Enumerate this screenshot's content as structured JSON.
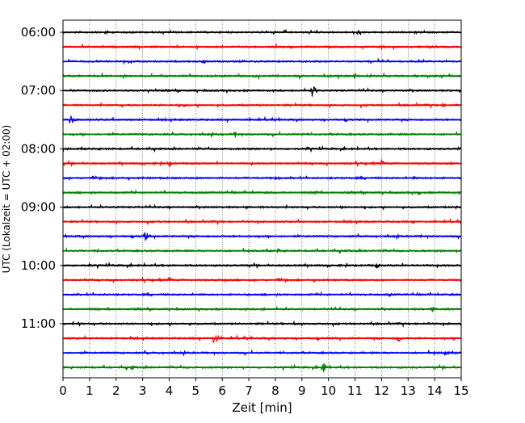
{
  "chart_data": {
    "type": "line",
    "title": "",
    "xlabel": "Zeit  [min]",
    "ylabel": "UTC (Lokalzeit = UTC + 02:00)",
    "xlim": [
      0,
      15
    ],
    "x_ticks": [
      "0",
      "1",
      "2",
      "3",
      "4",
      "5",
      "6",
      "7",
      "8",
      "9",
      "10",
      "11",
      "12",
      "13",
      "14",
      "15"
    ],
    "y_tick_labels": [
      "06:00",
      "07:00",
      "08:00",
      "09:00",
      "10:00",
      "11:00"
    ],
    "grid": "vertical dotted at each minute",
    "trace_colors": [
      "#000000",
      "#ff0000",
      "#0000ff",
      "#008000"
    ],
    "traces": [
      {
        "start": "06:00",
        "color": "#000000",
        "events": [
          {
            "x": 1.6,
            "amp": 0.35
          },
          {
            "x": 11.1,
            "amp": 0.45
          }
        ]
      },
      {
        "start": "06:15",
        "color": "#ff0000",
        "events": [
          {
            "x": 12.0,
            "amp": 0.45
          },
          {
            "x": 1.5,
            "amp": 0.25
          }
        ]
      },
      {
        "start": "06:30",
        "color": "#0000ff",
        "events": [
          {
            "x": 5.3,
            "amp": 0.5
          },
          {
            "x": 1.2,
            "amp": 0.25
          }
        ]
      },
      {
        "start": "06:45",
        "color": "#008000",
        "events": [
          {
            "x": 11.0,
            "amp": 0.4
          },
          {
            "x": 3.7,
            "amp": 0.25
          }
        ]
      },
      {
        "start": "07:00",
        "color": "#000000",
        "events": [
          {
            "x": 9.4,
            "amp": 1.0
          },
          {
            "x": 1.0,
            "amp": 0.2
          }
        ]
      },
      {
        "start": "07:15",
        "color": "#ff0000",
        "events": [
          {
            "x": 4.5,
            "amp": 0.35
          },
          {
            "x": 14.3,
            "amp": 0.35
          }
        ]
      },
      {
        "start": "07:30",
        "color": "#0000ff",
        "events": [
          {
            "x": 0.3,
            "amp": 0.8
          },
          {
            "x": 12.0,
            "amp": 0.25
          }
        ]
      },
      {
        "start": "07:45",
        "color": "#008000",
        "events": [
          {
            "x": 6.5,
            "amp": 0.55
          },
          {
            "x": 9.0,
            "amp": 0.25
          }
        ]
      },
      {
        "start": "08:00",
        "color": "#000000",
        "events": [
          {
            "x": 9.2,
            "amp": 0.35
          },
          {
            "x": 14.9,
            "amp": 0.3
          }
        ]
      },
      {
        "start": "08:15",
        "color": "#ff0000",
        "events": [
          {
            "x": 4.0,
            "amp": 0.45
          },
          {
            "x": 12.0,
            "amp": 0.55
          }
        ]
      },
      {
        "start": "08:30",
        "color": "#0000ff",
        "events": [
          {
            "x": 8.1,
            "amp": 0.3
          },
          {
            "x": 13.2,
            "amp": 0.25
          }
        ]
      },
      {
        "start": "08:45",
        "color": "#008000",
        "events": [
          {
            "x": 9.5,
            "amp": 0.35
          },
          {
            "x": 13.4,
            "amp": 0.35
          }
        ]
      },
      {
        "start": "09:00",
        "color": "#000000",
        "events": [
          {
            "x": 10.5,
            "amp": 0.3
          },
          {
            "x": 14.8,
            "amp": 0.3
          }
        ]
      },
      {
        "start": "09:15",
        "color": "#ff0000",
        "events": [
          {
            "x": 9.0,
            "amp": 0.25
          },
          {
            "x": 13.2,
            "amp": 0.3
          }
        ]
      },
      {
        "start": "09:30",
        "color": "#0000ff",
        "events": [
          {
            "x": 3.1,
            "amp": 0.8
          },
          {
            "x": 13.5,
            "amp": 0.3
          }
        ]
      },
      {
        "start": "09:45",
        "color": "#008000",
        "events": [
          {
            "x": 8.1,
            "amp": 0.35
          },
          {
            "x": 1.3,
            "amp": 0.25
          }
        ]
      },
      {
        "start": "10:00",
        "color": "#000000",
        "events": [
          {
            "x": 11.8,
            "amp": 0.5
          },
          {
            "x": 1.0,
            "amp": 0.25
          }
        ]
      },
      {
        "start": "10:15",
        "color": "#ff0000",
        "events": [
          {
            "x": 4.0,
            "amp": 0.5
          },
          {
            "x": 6.1,
            "amp": 0.25
          }
        ]
      },
      {
        "start": "10:30",
        "color": "#0000ff",
        "events": [
          {
            "x": 12.3,
            "amp": 0.3
          },
          {
            "x": 1.6,
            "amp": 0.25
          }
        ]
      },
      {
        "start": "10:45",
        "color": "#008000",
        "events": [
          {
            "x": 13.9,
            "amp": 0.5
          },
          {
            "x": 7.5,
            "amp": 0.3
          }
        ]
      },
      {
        "start": "11:00",
        "color": "#000000",
        "events": [
          {
            "x": 0.6,
            "amp": 0.3
          },
          {
            "x": 8.7,
            "amp": 0.3
          }
        ]
      },
      {
        "start": "11:15",
        "color": "#ff0000",
        "events": [
          {
            "x": 5.7,
            "amp": 1.0
          },
          {
            "x": 12.6,
            "amp": 0.8
          }
        ]
      },
      {
        "start": "11:30",
        "color": "#0000ff",
        "events": [
          {
            "x": 14.4,
            "amp": 0.5
          },
          {
            "x": 3.2,
            "amp": 0.25
          }
        ]
      },
      {
        "start": "11:45",
        "color": "#008000",
        "events": [
          {
            "x": 9.8,
            "amp": 0.85
          },
          {
            "x": 2.6,
            "amp": 0.4
          }
        ]
      }
    ]
  }
}
